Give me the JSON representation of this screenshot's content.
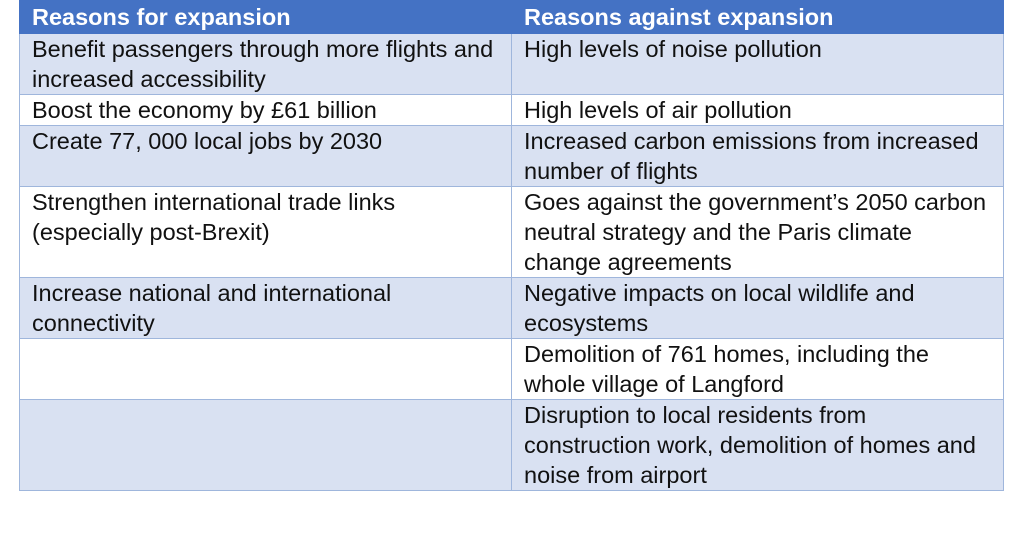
{
  "table": {
    "headers": [
      "Reasons for expansion",
      "Reasons against expansion"
    ],
    "rows": [
      [
        "Benefit passengers through more flights and increased accessibility",
        "High levels of noise pollution"
      ],
      [
        "Boost the economy by £61 billion",
        "High levels of air pollution"
      ],
      [
        "Create 77, 000 local jobs by 2030",
        "Increased carbon emissions from increased number of flights"
      ],
      [
        "Strengthen international trade links (especially post-Brexit)",
        "Goes against the government’s 2050 carbon neutral strategy and the Paris climate change agreements"
      ],
      [
        "Increase national and international connectivity",
        "Negative impacts on local wildlife and ecosystems"
      ],
      [
        "",
        "Demolition of 761 homes, including the whole village of Langford"
      ],
      [
        "",
        "Disruption to local residents from construction work, demolition of homes and noise from airport"
      ]
    ]
  },
  "colors": {
    "header_bg": "#4472c4",
    "header_text": "#ffffff",
    "band_bg": "#d9e1f2",
    "plain_bg": "#ffffff",
    "border": "#9fb6dc"
  }
}
